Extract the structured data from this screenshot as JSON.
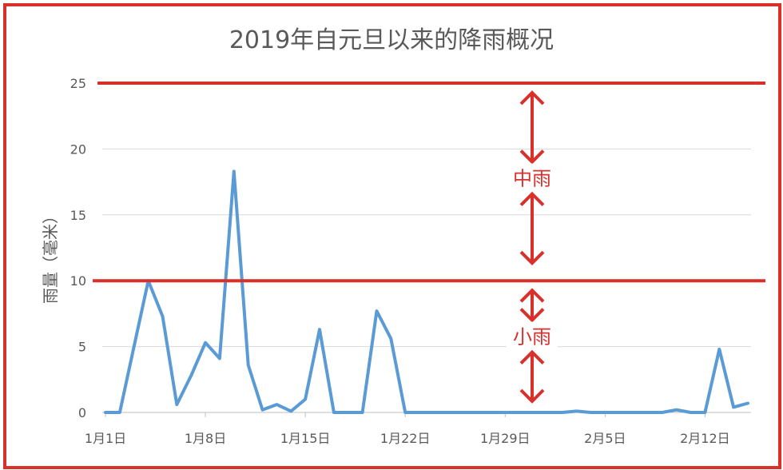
{
  "chart_data": {
    "type": "line",
    "title": "2019年自元旦以来的降雨概况",
    "xlabel": "",
    "ylabel": "雨量（毫米）",
    "ylim": [
      0,
      25
    ],
    "yticks": [
      0,
      5,
      10,
      15,
      20,
      25
    ],
    "x_tick_labels": [
      "1月1日",
      "1月8日",
      "1月15日",
      "1月22日",
      "1月29日",
      "2月5日",
      "2月12日"
    ],
    "x_range": [
      "2019-01-01",
      "2019-02-15"
    ],
    "grid": true,
    "legend": "none",
    "series": [
      {
        "color": "#5b9bd5",
        "x": [
          "2019-01-01",
          "2019-01-02",
          "2019-01-03",
          "2019-01-04",
          "2019-01-05",
          "2019-01-06",
          "2019-01-07",
          "2019-01-08",
          "2019-01-09",
          "2019-01-10",
          "2019-01-11",
          "2019-01-12",
          "2019-01-13",
          "2019-01-14",
          "2019-01-15",
          "2019-01-16",
          "2019-01-17",
          "2019-01-18",
          "2019-01-19",
          "2019-01-20",
          "2019-01-21",
          "2019-01-22",
          "2019-01-23",
          "2019-01-24",
          "2019-01-25",
          "2019-01-26",
          "2019-01-27",
          "2019-01-28",
          "2019-01-29",
          "2019-01-30",
          "2019-01-31",
          "2019-02-01",
          "2019-02-02",
          "2019-02-03",
          "2019-02-04",
          "2019-02-05",
          "2019-02-06",
          "2019-02-07",
          "2019-02-08",
          "2019-02-09",
          "2019-02-10",
          "2019-02-11",
          "2019-02-12",
          "2019-02-13",
          "2019-02-14",
          "2019-02-15"
        ],
        "values": [
          0,
          0,
          5,
          10,
          7.3,
          0.6,
          2.8,
          5.3,
          4.1,
          18.3,
          3.6,
          0.2,
          0.6,
          0.1,
          1,
          6.3,
          0,
          0,
          0,
          7.7,
          5.6,
          0,
          0,
          0,
          0,
          0,
          0,
          0,
          0,
          0,
          0,
          0,
          0,
          0.1,
          0,
          0,
          0,
          0,
          0,
          0,
          0.2,
          0,
          0,
          4.8,
          0.4,
          0.7
        ]
      }
    ],
    "annotations": [
      {
        "text": "中雨",
        "range": [
          10,
          25
        ],
        "color": "#d9302c"
      },
      {
        "text": "小雨",
        "range": [
          0,
          10
        ],
        "color": "#d9302c"
      }
    ],
    "threshold_lines": [
      25,
      10
    ]
  }
}
